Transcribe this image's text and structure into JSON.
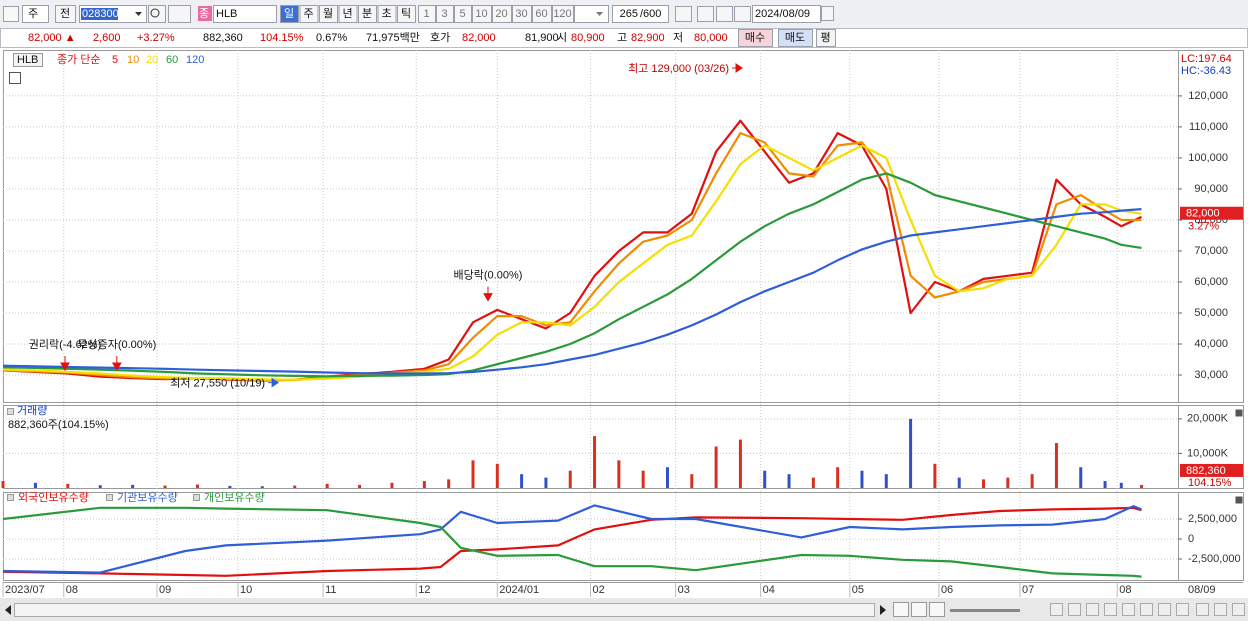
{
  "toolbar": {
    "market": "주",
    "prev": "전",
    "code": "028300",
    "type_badge": "종",
    "name": "HLB",
    "periods": [
      "일",
      "주",
      "월",
      "년",
      "분",
      "초",
      "틱"
    ],
    "intervals": [
      "1",
      "3",
      "5",
      "10",
      "20",
      "30",
      "60",
      "120"
    ],
    "count": "265",
    "count_max": "/600",
    "date": "2024/08/09"
  },
  "quote": {
    "price": "82,000 ▲",
    "change": "2,600",
    "change_pct": "+3.27%",
    "volume": "882,360",
    "volume_ratio": "104.15%",
    "turnover": "0.67%",
    "amount": "71,975백만",
    "bid_label": "호가",
    "ask": "82,000",
    "bid": "81,900",
    "open_label": "시",
    "open": "80,900",
    "high_label": "고",
    "high": "82,900",
    "low_label": "저",
    "low": "80,000",
    "buy": "매수",
    "sell": "매도",
    "eval": "평"
  },
  "axis_end_date": "08/09",
  "chart_data": [
    {
      "type": "line",
      "title": "HLB",
      "legend_title": "종가 단순",
      "xlim": [
        0,
        290
      ],
      "xticks": [
        {
          "value": 0,
          "label": "2023/07"
        },
        {
          "value": 15,
          "label": "08"
        },
        {
          "value": 38,
          "label": "09"
        },
        {
          "value": 58,
          "label": "10"
        },
        {
          "value": 79,
          "label": "11"
        },
        {
          "value": 102,
          "label": "12"
        },
        {
          "value": 122,
          "label": "2024/01"
        },
        {
          "value": 145,
          "label": "02"
        },
        {
          "value": 166,
          "label": "03"
        },
        {
          "value": 187,
          "label": "04"
        },
        {
          "value": 209,
          "label": "05"
        },
        {
          "value": 231,
          "label": "06"
        },
        {
          "value": 251,
          "label": "07"
        },
        {
          "value": 275,
          "label": "08"
        }
      ],
      "ylim": [
        21300,
        134800
      ],
      "yticks": [
        {
          "value": 30000,
          "label": "30,000"
        },
        {
          "value": 40000,
          "label": "40,000"
        },
        {
          "value": 50000,
          "label": "50,000"
        },
        {
          "value": 60000,
          "label": "60,000"
        },
        {
          "value": 70000,
          "label": "70,000"
        },
        {
          "value": 80000,
          "label": "80,000"
        },
        {
          "value": 90000,
          "label": "90,000"
        },
        {
          "value": 100000,
          "label": "100,000"
        },
        {
          "value": 110000,
          "label": "110,000"
        },
        {
          "value": 120000,
          "label": "120,000"
        }
      ],
      "grid": true,
      "x": [
        0,
        8,
        16,
        24,
        32,
        40,
        48,
        56,
        64,
        72,
        80,
        88,
        96,
        104,
        110,
        116,
        122,
        128,
        134,
        140,
        146,
        152,
        158,
        164,
        170,
        176,
        182,
        188,
        194,
        200,
        206,
        212,
        218,
        224,
        230,
        236,
        242,
        248,
        254,
        260,
        266,
        272,
        276,
        281
      ],
      "series": [
        {
          "name": "5",
          "color": "#e01010",
          "values": [
            31500,
            31000,
            30500,
            29500,
            29000,
            28700,
            29000,
            28500,
            28200,
            28500,
            29500,
            30300,
            31000,
            32000,
            35000,
            47000,
            51000,
            48000,
            45000,
            50000,
            62000,
            70000,
            76000,
            76000,
            82000,
            102000,
            112000,
            102000,
            92000,
            95000,
            108000,
            104000,
            90000,
            50000,
            60000,
            57000,
            61000,
            62000,
            63000,
            93000,
            85000,
            81000,
            78000,
            81000
          ]
        },
        {
          "name": "10",
          "color": "#f08c00",
          "values": [
            31500,
            31200,
            30800,
            30000,
            29300,
            28900,
            29000,
            28700,
            28300,
            28400,
            29200,
            30000,
            30700,
            31500,
            33500,
            42000,
            49000,
            49000,
            46000,
            47000,
            57000,
            66000,
            73000,
            75000,
            80000,
            95000,
            108000,
            105000,
            95000,
            94000,
            104000,
            105000,
            95000,
            62000,
            55000,
            57000,
            60000,
            61000,
            62000,
            85000,
            88000,
            83000,
            80000,
            80000
          ]
        },
        {
          "name": "20",
          "color": "#f2e000",
          "values": [
            31800,
            31500,
            31000,
            30500,
            29800,
            29300,
            29000,
            28900,
            28600,
            28500,
            28800,
            29500,
            30200,
            31000,
            32000,
            36000,
            43000,
            47000,
            47000,
            46000,
            52000,
            60000,
            66000,
            72000,
            75000,
            86000,
            98000,
            104000,
            100000,
            96000,
            100000,
            104000,
            100000,
            80000,
            62000,
            57000,
            58000,
            61000,
            62000,
            72000,
            85000,
            85000,
            83000,
            82000
          ]
        },
        {
          "name": "60",
          "color": "#2a9a3a",
          "values": [
            32500,
            32300,
            32000,
            31700,
            31400,
            31000,
            30500,
            30200,
            29900,
            29700,
            29600,
            29700,
            29800,
            30000,
            30300,
            31500,
            33500,
            35500,
            37500,
            40000,
            43500,
            48000,
            52000,
            56000,
            61000,
            67000,
            73000,
            78000,
            82000,
            85000,
            89000,
            93000,
            95000,
            92000,
            88000,
            86000,
            84000,
            82000,
            80000,
            78000,
            76000,
            74000,
            72000,
            71000
          ]
        },
        {
          "name": "120",
          "color": "#2f5fd8",
          "values": [
            33000,
            32800,
            32600,
            32400,
            32200,
            32000,
            31700,
            31500,
            31300,
            31100,
            30800,
            30600,
            30500,
            30500,
            30600,
            31000,
            31700,
            32500,
            33500,
            35000,
            36500,
            38500,
            40500,
            43000,
            46000,
            49500,
            53500,
            57000,
            60000,
            63000,
            67000,
            70500,
            73000,
            75000,
            76000,
            77000,
            78000,
            79000,
            80000,
            81000,
            82000,
            82500,
            83000,
            83500
          ]
        }
      ],
      "last_value": {
        "value": 82000,
        "label": "82,000"
      },
      "last_change": "3.27%",
      "lc": "LC:197.64",
      "hc": "HC:-36.43",
      "annotations": [
        {
          "text": "최고 129,000 (03/26)",
          "x": 182.4,
          "y": 129000,
          "arrow": "right",
          "color": "#e01010"
        },
        {
          "text": "배당락(0.00%)",
          "x": 119.7,
          "y": 54000,
          "arrow": "down",
          "color": "#e01010"
        },
        {
          "text": "권리락(-4.62%)",
          "x": 15.3,
          "y": 31600,
          "arrow": "down",
          "color": "#e01010"
        },
        {
          "text": "무상증자(0.00%)",
          "x": 28.1,
          "y": 31600,
          "arrow": "down",
          "color": "#e01010"
        },
        {
          "text": "최저 27,550 (10/19)",
          "x": 67.9,
          "y": 27550,
          "arrow": "right",
          "color": "#2f5fd8"
        }
      ]
    },
    {
      "type": "bar",
      "title": "거래량",
      "subtitle": "882,360주(104.15%)",
      "x": [
        0,
        8,
        16,
        24,
        32,
        40,
        48,
        56,
        64,
        72,
        80,
        88,
        96,
        104,
        110,
        116,
        122,
        128,
        134,
        140,
        146,
        152,
        158,
        164,
        170,
        176,
        182,
        188,
        194,
        200,
        206,
        212,
        218,
        224,
        230,
        236,
        242,
        248,
        254,
        260,
        266,
        272,
        276,
        281
      ],
      "values": [
        2000000,
        1500000,
        1200000,
        800000,
        900000,
        700000,
        1000000,
        600000,
        500000,
        700000,
        1200000,
        900000,
        1500000,
        2000000,
        2500000,
        8000000,
        7000000,
        4000000,
        3000000,
        5000000,
        15000000,
        8000000,
        5000000,
        6000000,
        4000000,
        12000000,
        14000000,
        5000000,
        4000000,
        3000000,
        6000000,
        5000000,
        4000000,
        20000000,
        7000000,
        3000000,
        2500000,
        3000000,
        4000000,
        13000000,
        6000000,
        2000000,
        1500000,
        882360
      ],
      "colors": [
        "#d83020",
        "#3050c8",
        "#d83020",
        "#3050c8",
        "#3050c8",
        "#d83020",
        "#d83020",
        "#3050c8",
        "#3050c8",
        "#d83020",
        "#d83020",
        "#d83020",
        "#d83020",
        "#d83020",
        "#d83020",
        "#d83020",
        "#d83020",
        "#3050c8",
        "#3050c8",
        "#d83020",
        "#d83020",
        "#d83020",
        "#d83020",
        "#3050c8",
        "#d83020",
        "#d83020",
        "#d83020",
        "#3050c8",
        "#3050c8",
        "#d83020",
        "#d83020",
        "#3050c8",
        "#3050c8",
        "#3050c8",
        "#d83020",
        "#3050c8",
        "#d83020",
        "#d83020",
        "#d83020",
        "#d83020",
        "#3050c8",
        "#3050c8",
        "#3050c8",
        "#d83020"
      ],
      "ylim": [
        0,
        24000000
      ],
      "yticks": [
        {
          "value": 10000000,
          "label": "10,000K"
        },
        {
          "value": 20000000,
          "label": "20,000K"
        }
      ],
      "grid": true,
      "last_value": {
        "value": 882360,
        "label": "882,360"
      },
      "last_ratio": "104.15%"
    },
    {
      "type": "line",
      "x": [
        0,
        24,
        45,
        55,
        80,
        103,
        108,
        113,
        122,
        137,
        146,
        160,
        171,
        197,
        209,
        222,
        234,
        246,
        259,
        272,
        279,
        281
      ],
      "series": [
        {
          "name": "외국인보유수량",
          "color": "#e01010",
          "values": [
            -4100000,
            -4300000,
            -4500000,
            -4600000,
            -4000000,
            -3700000,
            -3500000,
            -1500000,
            -1300000,
            -800000,
            1200000,
            2400000,
            2700000,
            2600000,
            2500000,
            2400000,
            3000000,
            3500000,
            3700000,
            3800000,
            3900000,
            3600000
          ]
        },
        {
          "name": "기관보유수량",
          "color": "#2f5fd8",
          "values": [
            -4000000,
            -4200000,
            -1500000,
            -800000,
            -200000,
            600000,
            1200000,
            3400000,
            2000000,
            2300000,
            4200000,
            2500000,
            2500000,
            200000,
            1500000,
            1200000,
            1500000,
            1700000,
            1800000,
            2500000,
            4100000,
            3700000
          ]
        },
        {
          "name": "개인보유수량",
          "color": "#2a9a3a",
          "values": [
            2500000,
            3900000,
            3900000,
            3800000,
            3600000,
            2000000,
            1500000,
            -1100000,
            -2100000,
            -2000000,
            -3400000,
            -3400000,
            -3900000,
            -2000000,
            -2100000,
            -2600000,
            -2800000,
            -3500000,
            -4300000,
            -4500000,
            -4600000,
            -4700000
          ]
        }
      ],
      "ylim": [
        -5125000,
        5875000
      ],
      "yticks": [
        {
          "value": 2500000,
          "label": "2,500,000"
        },
        0,
        {
          "value": -2500000,
          "label": "-2,500,000"
        }
      ],
      "grid": true
    }
  ]
}
